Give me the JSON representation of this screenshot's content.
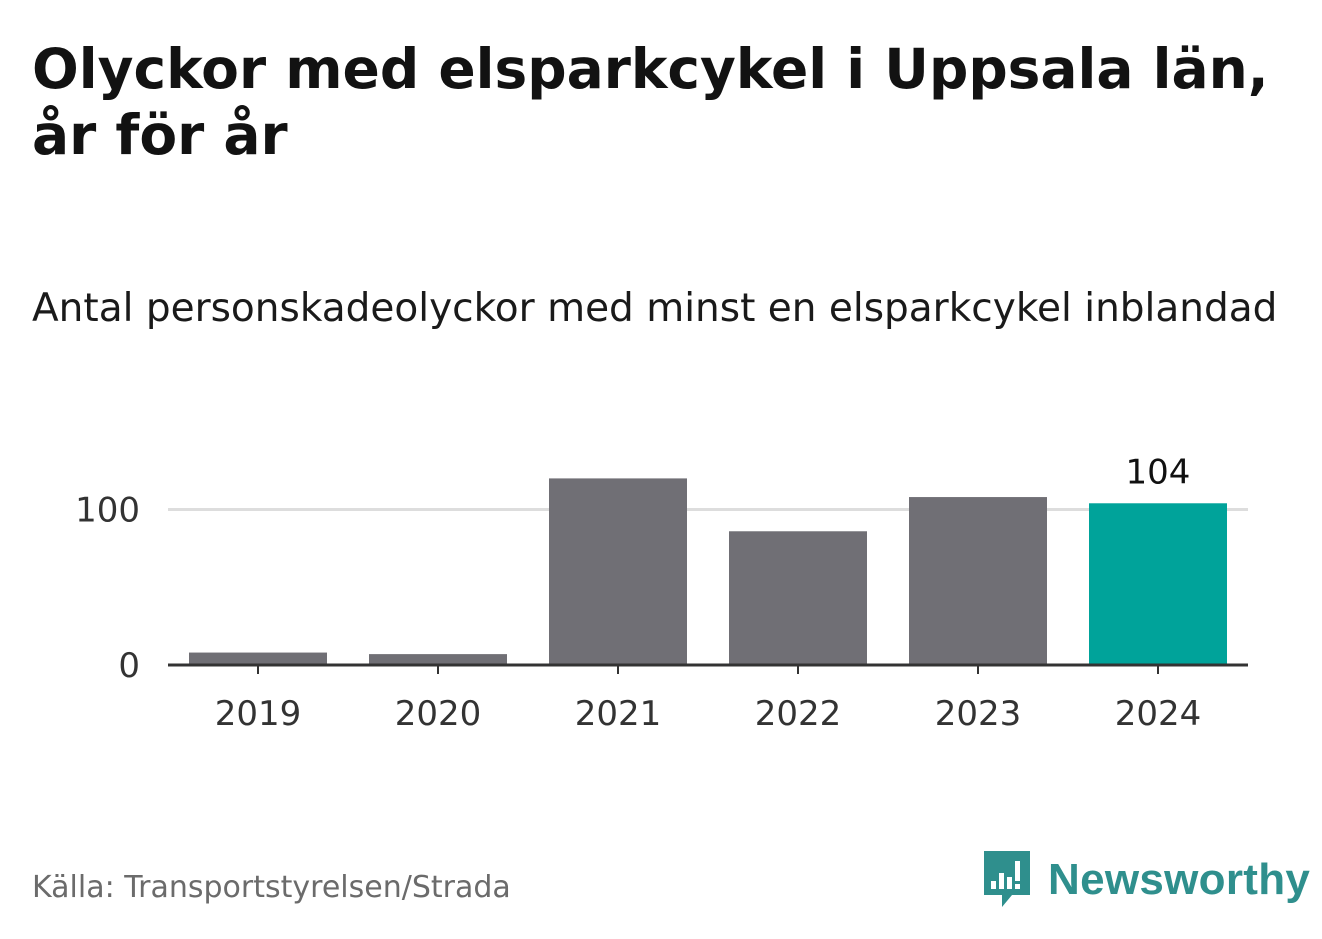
{
  "title": "Olyckor med elsparkcykel i Uppsala län, år för år",
  "subtitle": "Antal personskadeolyckor med minst en elsparkcykel inblandad",
  "source": "Källa: Transportstyrelsen/Strada",
  "brand": {
    "name": "Newsworthy",
    "icon": "newsworthy-logo-icon",
    "color": "#2f8f8d"
  },
  "colors": {
    "bar": "#706f75",
    "highlight": "#00a39a",
    "grid": "#dddddd",
    "axis": "#333333"
  },
  "chart_data": {
    "type": "bar",
    "categories": [
      "2019",
      "2020",
      "2021",
      "2022",
      "2023",
      "2024"
    ],
    "values": [
      8,
      7,
      120,
      86,
      108,
      104
    ],
    "highlight_index": 5,
    "data_labels": [
      {
        "index": 5,
        "text": "104"
      }
    ],
    "yticks": [
      0,
      100
    ],
    "ylim": [
      0,
      130
    ],
    "grid": true,
    "xlabel": "",
    "ylabel": ""
  }
}
